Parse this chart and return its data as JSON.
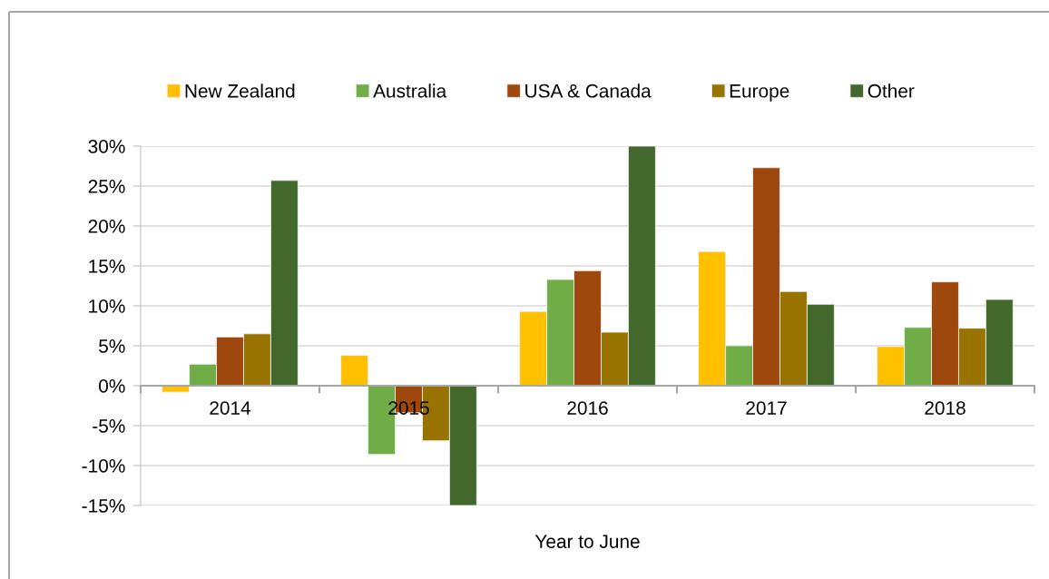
{
  "chart_data": {
    "type": "bar",
    "xlabel": "Year to June",
    "categories": [
      "2014",
      "2015",
      "2016",
      "2017",
      "2018"
    ],
    "series": [
      {
        "name": "New Zealand",
        "color": "#ffc000",
        "values": [
          -0.8,
          3.8,
          9.3,
          16.8,
          4.9
        ]
      },
      {
        "name": "Australia",
        "color": "#70ad47",
        "values": [
          2.7,
          -8.6,
          13.3,
          5.0,
          7.3
        ]
      },
      {
        "name": "USA & Canada",
        "color": "#9e480e",
        "values": [
          6.1,
          -3.4,
          14.4,
          27.3,
          13.0
        ]
      },
      {
        "name": "Europe",
        "color": "#997300",
        "values": [
          6.5,
          -6.9,
          6.7,
          11.8,
          7.2
        ]
      },
      {
        "name": "Other",
        "color": "#43682b",
        "values": [
          25.7,
          -15,
          30,
          10.2,
          10.8
        ]
      }
    ],
    "ylim": [
      -15,
      30
    ],
    "yticks": [
      {
        "value": -15,
        "label": "-15%"
      },
      {
        "value": -10,
        "label": "-10%"
      },
      {
        "value": -5,
        "label": "-5%"
      },
      {
        "value": 0,
        "label": "0%"
      },
      {
        "value": 5,
        "label": "5%"
      },
      {
        "value": 10,
        "label": "10%"
      },
      {
        "value": 15,
        "label": "15%"
      },
      {
        "value": 20,
        "label": "20%"
      },
      {
        "value": 25,
        "label": "25%"
      },
      {
        "value": 30,
        "label": "30%"
      }
    ],
    "grid": "y",
    "legend": "top"
  }
}
